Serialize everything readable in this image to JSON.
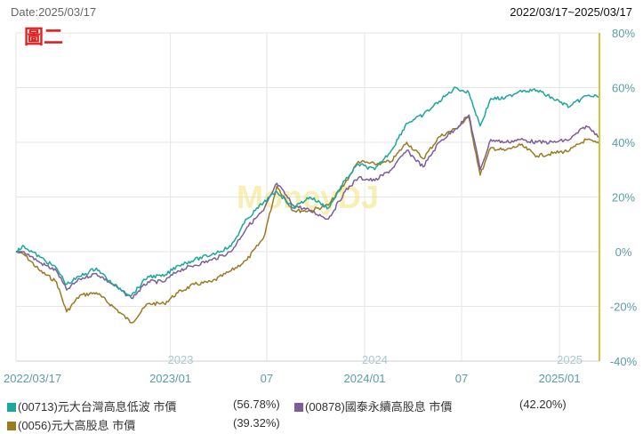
{
  "header": {
    "date_label": "Date:2025/03/17",
    "range_label": "2022/03/17~2025/03/17",
    "figure_label": "圖二",
    "watermark": "MoneyDJ"
  },
  "colors": {
    "grid": "#e6e6e6",
    "right_axis": "#d8c23a",
    "axis_text": "#5a9ea6"
  },
  "chart_data": {
    "type": "line",
    "x_range": [
      "2022/03/17",
      "2025/03/17"
    ],
    "x_ticks": [
      {
        "date": "2022/03/17",
        "label": "2022/03/17",
        "year_marker": ""
      },
      {
        "date": "2023/01/01",
        "label": "2023/01",
        "year_marker": "2023"
      },
      {
        "date": "2023/07/01",
        "label": "07",
        "year_marker": ""
      },
      {
        "date": "2024/01/01",
        "label": "2024/01",
        "year_marker": "2024"
      },
      {
        "date": "2024/07/01",
        "label": "07",
        "year_marker": ""
      },
      {
        "date": "2025/01/01",
        "label": "2025/01",
        "year_marker": "2025"
      }
    ],
    "y_axis": {
      "position": "right",
      "unit": "%",
      "min": -40,
      "max": 80,
      "ticks": [
        80,
        60,
        40,
        20,
        0,
        -20,
        -40
      ],
      "tick_labels": [
        "80%",
        "60%",
        "40%",
        "20%",
        "0%",
        "-20%",
        "-40%"
      ]
    },
    "grid": true,
    "legend_position": "bottom",
    "series": [
      {
        "name": "(00713)元大台灣高息低波 市價",
        "value_label": "(56.78%)",
        "color": "#19a89e",
        "points": [
          [
            "2022/03/17",
            0
          ],
          [
            "2022/04/01",
            2
          ],
          [
            "2022/05/01",
            -2
          ],
          [
            "2022/06/01",
            -6
          ],
          [
            "2022/06/20",
            -12
          ],
          [
            "2022/07/15",
            -9
          ],
          [
            "2022/08/15",
            -6
          ],
          [
            "2022/09/15",
            -12
          ],
          [
            "2022/10/20",
            -16
          ],
          [
            "2022/11/20",
            -9
          ],
          [
            "2022/12/20",
            -9
          ],
          [
            "2023/01/15",
            -5
          ],
          [
            "2023/02/15",
            -3
          ],
          [
            "2023/03/20",
            -1
          ],
          [
            "2023/04/25",
            2
          ],
          [
            "2023/05/25",
            12
          ],
          [
            "2023/06/25",
            18
          ],
          [
            "2023/07/20",
            22
          ],
          [
            "2023/08/20",
            16
          ],
          [
            "2023/09/20",
            20
          ],
          [
            "2023/10/25",
            16
          ],
          [
            "2023/11/25",
            26
          ],
          [
            "2023/12/20",
            32
          ],
          [
            "2024/01/20",
            30
          ],
          [
            "2024/02/20",
            37
          ],
          [
            "2024/03/20",
            47
          ],
          [
            "2024/04/20",
            50
          ],
          [
            "2024/05/20",
            55
          ],
          [
            "2024/06/20",
            60
          ],
          [
            "2024/07/15",
            58
          ],
          [
            "2024/08/05",
            46
          ],
          [
            "2024/08/25",
            56
          ],
          [
            "2024/09/20",
            56
          ],
          [
            "2024/10/20",
            59
          ],
          [
            "2024/11/20",
            59
          ],
          [
            "2024/12/20",
            56
          ],
          [
            "2025/01/20",
            53
          ],
          [
            "2025/02/20",
            57
          ],
          [
            "2025/03/17",
            56.78
          ]
        ]
      },
      {
        "name": "(00878)國泰永續高股息 市價",
        "value_label": "(42.20%)",
        "color": "#7e5e9a",
        "points": [
          [
            "2022/03/17",
            0
          ],
          [
            "2022/04/01",
            0
          ],
          [
            "2022/05/01",
            -4
          ],
          [
            "2022/06/01",
            -7
          ],
          [
            "2022/06/20",
            -14
          ],
          [
            "2022/07/15",
            -10
          ],
          [
            "2022/08/15",
            -8
          ],
          [
            "2022/09/15",
            -12
          ],
          [
            "2022/10/20",
            -17
          ],
          [
            "2022/11/20",
            -11
          ],
          [
            "2022/12/20",
            -11
          ],
          [
            "2023/01/15",
            -7
          ],
          [
            "2023/02/15",
            -5
          ],
          [
            "2023/03/20",
            -3
          ],
          [
            "2023/04/25",
            0
          ],
          [
            "2023/05/25",
            9
          ],
          [
            "2023/06/25",
            15
          ],
          [
            "2023/07/20",
            25
          ],
          [
            "2023/08/20",
            17
          ],
          [
            "2023/09/20",
            15
          ],
          [
            "2023/10/25",
            12
          ],
          [
            "2023/11/25",
            22
          ],
          [
            "2023/12/20",
            27
          ],
          [
            "2024/01/20",
            26
          ],
          [
            "2024/02/20",
            30
          ],
          [
            "2024/03/20",
            37
          ],
          [
            "2024/04/20",
            31
          ],
          [
            "2024/05/20",
            40
          ],
          [
            "2024/06/20",
            45
          ],
          [
            "2024/07/15",
            50
          ],
          [
            "2024/08/05",
            30
          ],
          [
            "2024/08/25",
            41
          ],
          [
            "2024/09/20",
            40
          ],
          [
            "2024/10/20",
            41
          ],
          [
            "2024/11/20",
            40
          ],
          [
            "2024/12/20",
            40
          ],
          [
            "2025/01/20",
            41
          ],
          [
            "2025/02/20",
            46
          ],
          [
            "2025/03/17",
            42.2
          ]
        ]
      },
      {
        "name": "(0056)元大高股息 市價",
        "value_label": "(39.32%)",
        "color": "#9b7a22",
        "points": [
          [
            "2022/03/17",
            0
          ],
          [
            "2022/04/01",
            -1
          ],
          [
            "2022/05/01",
            -7
          ],
          [
            "2022/06/01",
            -11
          ],
          [
            "2022/06/20",
            -22
          ],
          [
            "2022/07/15",
            -16
          ],
          [
            "2022/08/15",
            -15
          ],
          [
            "2022/09/15",
            -20
          ],
          [
            "2022/10/20",
            -26
          ],
          [
            "2022/11/20",
            -19
          ],
          [
            "2022/12/20",
            -19
          ],
          [
            "2023/01/15",
            -15
          ],
          [
            "2023/02/15",
            -12
          ],
          [
            "2023/03/20",
            -11
          ],
          [
            "2023/04/25",
            -7
          ],
          [
            "2023/05/25",
            -3
          ],
          [
            "2023/06/25",
            5
          ],
          [
            "2023/07/20",
            24
          ],
          [
            "2023/08/20",
            15
          ],
          [
            "2023/09/20",
            15
          ],
          [
            "2023/10/25",
            17
          ],
          [
            "2023/11/25",
            25
          ],
          [
            "2023/12/20",
            33
          ],
          [
            "2024/01/20",
            32
          ],
          [
            "2024/02/20",
            33
          ],
          [
            "2024/03/20",
            40
          ],
          [
            "2024/04/20",
            34
          ],
          [
            "2024/05/20",
            42
          ],
          [
            "2024/06/20",
            45
          ],
          [
            "2024/07/15",
            49
          ],
          [
            "2024/08/05",
            28
          ],
          [
            "2024/08/25",
            38
          ],
          [
            "2024/09/20",
            37
          ],
          [
            "2024/10/20",
            39
          ],
          [
            "2024/11/20",
            35
          ],
          [
            "2024/12/20",
            36
          ],
          [
            "2025/01/20",
            37
          ],
          [
            "2025/02/20",
            41
          ],
          [
            "2025/03/17",
            39.32
          ]
        ]
      }
    ]
  }
}
